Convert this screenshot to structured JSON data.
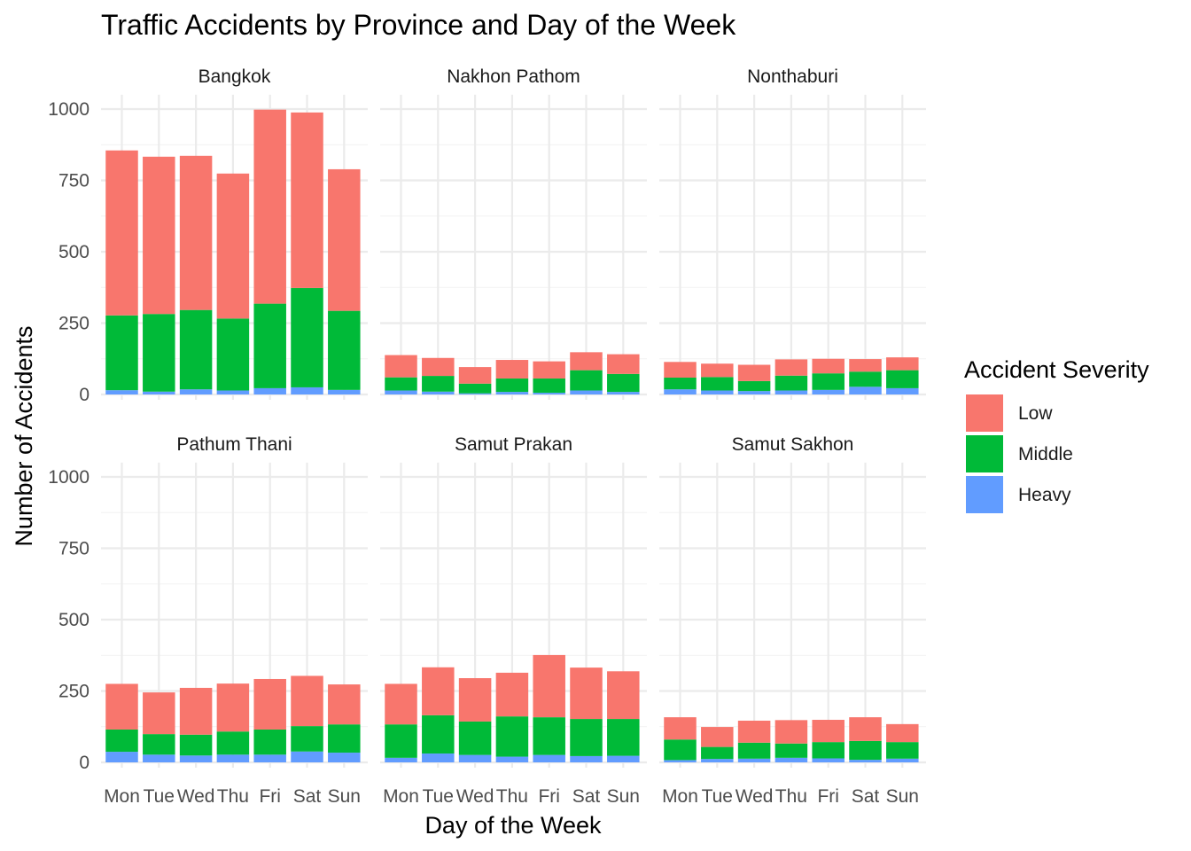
{
  "chart_data": {
    "type": "bar",
    "stacked": true,
    "title": "Traffic Accidents by Province and Day of the Week",
    "xlabel": "Day of the Week",
    "ylabel": "Number of Accidents",
    "ylim": [
      0,
      1050
    ],
    "yticks": [
      0,
      250,
      500,
      750,
      1000
    ],
    "grid": true,
    "facet_layout": "2 rows x 3 columns",
    "legend_position": "right",
    "legend_title": "Accident Severity",
    "categories": [
      "Mon",
      "Tue",
      "Wed",
      "Thu",
      "Fri",
      "Sat",
      "Sun"
    ],
    "series_meta": [
      {
        "name": "Low",
        "color": "#F8766D"
      },
      {
        "name": "Middle",
        "color": "#00BA38"
      },
      {
        "name": "Heavy",
        "color": "#619CFF"
      }
    ],
    "panels": [
      {
        "name": "Bangkok",
        "series": [
          {
            "name": "Heavy",
            "values": [
              15,
              10,
              18,
              14,
              22,
              25,
              16
            ]
          },
          {
            "name": "Middle",
            "values": [
              262,
              272,
              278,
              252,
              296,
              348,
              277
            ]
          },
          {
            "name": "Low",
            "values": [
              578,
              551,
              540,
              508,
              680,
              615,
              496
            ]
          }
        ]
      },
      {
        "name": "Nakhon Pathom",
        "series": [
          {
            "name": "Heavy",
            "values": [
              14,
              10,
              4,
              9,
              6,
              14,
              9
            ]
          },
          {
            "name": "Middle",
            "values": [
              46,
              55,
              34,
              47,
              50,
              71,
              63
            ]
          },
          {
            "name": "Low",
            "values": [
              78,
              63,
              58,
              65,
              60,
              63,
              69
            ]
          }
        ]
      },
      {
        "name": "Nonthaburi",
        "series": [
          {
            "name": "Heavy",
            "values": [
              18,
              14,
              12,
              14,
              16,
              27,
              22
            ]
          },
          {
            "name": "Middle",
            "values": [
              41,
              47,
              35,
              52,
              58,
              53,
              63
            ]
          },
          {
            "name": "Low",
            "values": [
              55,
              47,
              57,
              57,
              51,
              44,
              45
            ]
          }
        ]
      },
      {
        "name": "Pathum Thani",
        "series": [
          {
            "name": "Heavy",
            "values": [
              37,
              27,
              24,
              27,
              27,
              38,
              34
            ]
          },
          {
            "name": "Middle",
            "values": [
              78,
              72,
              73,
              81,
              88,
              89,
              99
            ]
          },
          {
            "name": "Low",
            "values": [
              160,
              146,
              164,
              168,
              177,
              176,
              140
            ]
          }
        ]
      },
      {
        "name": "Samut Prakan",
        "series": [
          {
            "name": "Heavy",
            "values": [
              16,
              31,
              26,
              20,
              26,
              22,
              23
            ]
          },
          {
            "name": "Middle",
            "values": [
              117,
              134,
              117,
              141,
              132,
              130,
              129
            ]
          },
          {
            "name": "Low",
            "values": [
              142,
              168,
              152,
              153,
              218,
              180,
              167
            ]
          }
        ]
      },
      {
        "name": "Samut Sakhon",
        "series": [
          {
            "name": "Heavy",
            "values": [
              8,
              12,
              13,
              16,
              14,
              9,
              13
            ]
          },
          {
            "name": "Middle",
            "values": [
              72,
              42,
              56,
              50,
              57,
              66,
              58
            ]
          },
          {
            "name": "Low",
            "values": [
              78,
              70,
              77,
              82,
              78,
              83,
              63
            ]
          }
        ]
      }
    ]
  }
}
